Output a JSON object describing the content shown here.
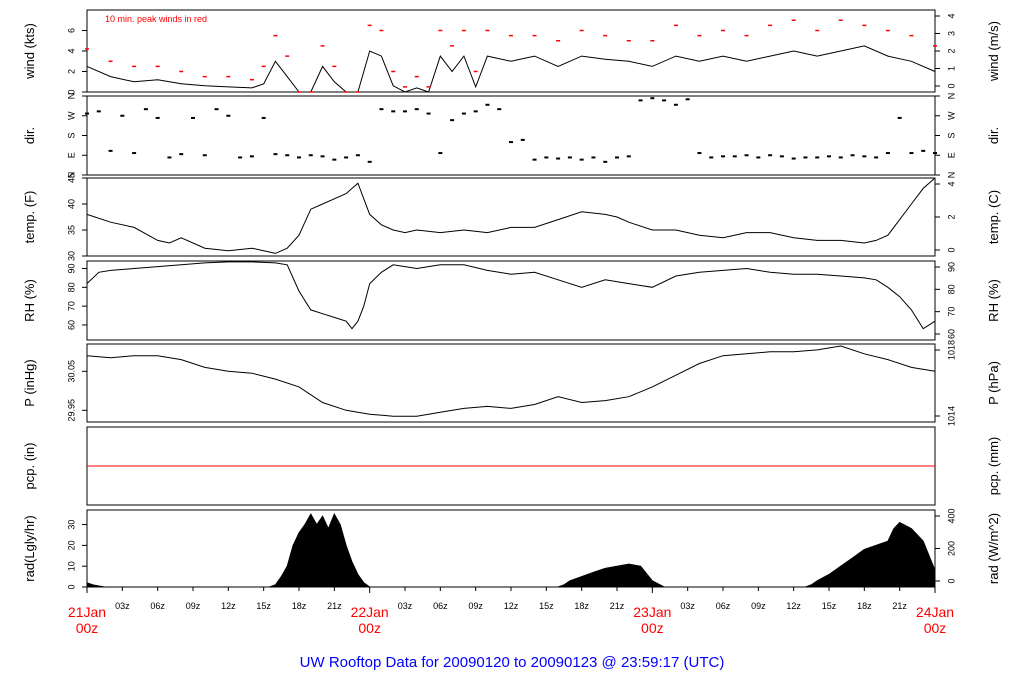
{
  "title": "UW Rooftop Data for 20090120  to  20090123 @ 23:59:17  (UTC)",
  "colors": {
    "axes": "#000000",
    "data": "#000000",
    "peak": "#ff0000",
    "date_labels": "#ff0000",
    "title": "#0000ff",
    "background": "#ffffff"
  },
  "time_axis": {
    "unit": "hours since 21Jan 00z",
    "range": [
      0,
      72
    ],
    "hour_ticks": [
      {
        "t": 3,
        "label": "03z"
      },
      {
        "t": 6,
        "label": "06z"
      },
      {
        "t": 9,
        "label": "09z"
      },
      {
        "t": 12,
        "label": "12z"
      },
      {
        "t": 15,
        "label": "15z"
      },
      {
        "t": 18,
        "label": "18z"
      },
      {
        "t": 21,
        "label": "21z"
      },
      {
        "t": 27,
        "label": "03z"
      },
      {
        "t": 30,
        "label": "06z"
      },
      {
        "t": 33,
        "label": "09z"
      },
      {
        "t": 36,
        "label": "12z"
      },
      {
        "t": 39,
        "label": "15z"
      },
      {
        "t": 42,
        "label": "18z"
      },
      {
        "t": 45,
        "label": "21z"
      },
      {
        "t": 51,
        "label": "03z"
      },
      {
        "t": 54,
        "label": "06z"
      },
      {
        "t": 57,
        "label": "09z"
      },
      {
        "t": 60,
        "label": "12z"
      },
      {
        "t": 63,
        "label": "15z"
      },
      {
        "t": 66,
        "label": "18z"
      },
      {
        "t": 69,
        "label": "21z"
      }
    ],
    "date_ticks": [
      {
        "t": 0,
        "date": "21Jan",
        "hour": "00z"
      },
      {
        "t": 24,
        "date": "22Jan",
        "hour": "00z"
      },
      {
        "t": 48,
        "date": "23Jan",
        "hour": "00z"
      },
      {
        "t": 72,
        "date": "24Jan",
        "hour": "00z"
      }
    ]
  },
  "chart_data": [
    {
      "id": "wind",
      "type": "line",
      "left_label": "wind (kts)",
      "right_label": "wind (m/s)",
      "annotation": "10 min. peak winds in red",
      "ylim": [
        0,
        8
      ],
      "left_ticks": [
        0,
        2,
        4,
        6
      ],
      "right_ticks": [
        0,
        1,
        2,
        3,
        4
      ],
      "series": [
        {
          "name": "",
          "x": [
            0,
            2,
            4,
            6,
            8,
            10,
            12,
            14,
            15,
            16,
            17,
            18,
            19,
            20,
            21,
            22,
            23,
            24,
            25,
            26,
            27,
            28,
            29,
            30,
            31,
            32,
            33,
            34,
            36,
            38,
            40,
            42,
            44,
            46,
            48,
            50,
            52,
            54,
            56,
            58,
            60,
            62,
            64,
            66,
            68,
            70,
            72
          ],
          "y": [
            2.5,
            1.5,
            1.0,
            1.2,
            0.8,
            0.6,
            0.5,
            0.4,
            0.8,
            3.0,
            1.5,
            0.0,
            0.0,
            2.5,
            1.0,
            0.0,
            0.0,
            4.0,
            3.5,
            0.6,
            0.0,
            0.4,
            0.0,
            3.5,
            2.0,
            3.5,
            0.5,
            3.5,
            3.0,
            3.5,
            2.5,
            3.5,
            3.2,
            3.0,
            2.5,
            3.5,
            3.0,
            3.5,
            3.0,
            3.5,
            4.0,
            3.5,
            4.0,
            4.5,
            3.5,
            3.0,
            2.0
          ]
        },
        {
          "name": "10 min. peak winds",
          "x": [
            0,
            2,
            4,
            6,
            8,
            10,
            12,
            14,
            15,
            16,
            17,
            18,
            19,
            20,
            21,
            22,
            23,
            24,
            25,
            26,
            27,
            28,
            29,
            30,
            31,
            32,
            33,
            34,
            36,
            38,
            40,
            42,
            44,
            46,
            48,
            50,
            52,
            54,
            56,
            58,
            60,
            62,
            64,
            66,
            68,
            70,
            72
          ],
          "y": [
            4.2,
            3.0,
            2.5,
            2.5,
            2.0,
            1.5,
            1.5,
            1.2,
            2.5,
            5.5,
            3.5,
            0.0,
            0.0,
            4.5,
            2.5,
            0.0,
            0.0,
            6.5,
            6.0,
            2.0,
            0.5,
            1.5,
            0.5,
            6.0,
            4.5,
            6.0,
            2.0,
            6.0,
            5.5,
            5.5,
            5.0,
            6.0,
            5.5,
            5.0,
            5.0,
            6.5,
            5.5,
            6.0,
            5.5,
            6.5,
            7.0,
            6.0,
            7.0,
            6.5,
            6.0,
            5.5,
            4.5
          ]
        }
      ]
    },
    {
      "id": "dir",
      "type": "scatter",
      "left_label": "dir.",
      "right_label": "dir.",
      "ylim": [
        0,
        360
      ],
      "left_ticks": [
        "N",
        "E",
        "S",
        "W",
        "N"
      ],
      "right_ticks": [
        "N",
        "E",
        "S",
        "W",
        "N"
      ],
      "series": [
        {
          "name": "",
          "x": [
            0,
            1,
            2,
            3,
            4,
            5,
            6,
            7,
            8,
            9,
            10,
            11,
            12,
            13,
            14,
            15,
            16,
            17,
            18,
            19,
            20,
            21,
            22,
            23,
            24,
            25,
            26,
            27,
            28,
            29,
            30,
            31,
            32,
            33,
            34,
            35,
            36,
            37,
            38,
            39,
            40,
            41,
            42,
            43,
            44,
            45,
            46,
            47,
            48,
            49,
            50,
            51,
            52,
            53,
            54,
            55,
            56,
            57,
            58,
            59,
            60,
            61,
            62,
            63,
            64,
            65,
            66,
            67,
            68,
            69,
            70,
            71,
            72
          ],
          "y": [
            280,
            290,
            110,
            270,
            100,
            300,
            260,
            80,
            95,
            260,
            90,
            300,
            270,
            80,
            85,
            260,
            95,
            90,
            80,
            90,
            85,
            70,
            80,
            90,
            60,
            300,
            290,
            290,
            300,
            280,
            100,
            250,
            280,
            290,
            320,
            300,
            150,
            160,
            70,
            80,
            75,
            80,
            70,
            80,
            60,
            80,
            85,
            340,
            350,
            340,
            320,
            345,
            100,
            80,
            85,
            85,
            90,
            80,
            90,
            85,
            75,
            80,
            80,
            85,
            80,
            90,
            85,
            80,
            100,
            260,
            100,
            110,
            100
          ]
        }
      ]
    },
    {
      "id": "temp",
      "type": "line",
      "left_label": "temp. (F)",
      "right_label": "temp. (C)",
      "ylim": [
        30,
        45
      ],
      "left_ticks": [
        30,
        35,
        40,
        45
      ],
      "right_ticks": [
        0,
        2,
        4
      ],
      "series": [
        {
          "name": "",
          "x": [
            0,
            2,
            4,
            6,
            7,
            8,
            10,
            12,
            14,
            15,
            16,
            17,
            18,
            19,
            20,
            21,
            22,
            23,
            24,
            25,
            26,
            27,
            28,
            30,
            32,
            34,
            36,
            38,
            40,
            42,
            44,
            45,
            46,
            48,
            50,
            52,
            54,
            56,
            58,
            60,
            62,
            64,
            66,
            67,
            68,
            69,
            70,
            71,
            72
          ],
          "y": [
            38,
            36.5,
            35.5,
            33,
            32.5,
            33.5,
            31.5,
            31,
            31.5,
            31,
            30.5,
            31.5,
            34,
            39,
            40,
            41,
            42,
            44,
            38,
            36,
            35,
            34.5,
            35,
            34.5,
            35,
            34.5,
            35.5,
            35.5,
            37,
            38.5,
            38,
            37.5,
            36.5,
            35,
            35,
            34,
            33.5,
            34.5,
            34.5,
            33.5,
            33,
            33,
            32.5,
            33,
            34,
            37,
            40,
            43,
            45
          ]
        }
      ]
    },
    {
      "id": "rh",
      "type": "line",
      "left_label": "RH (%)",
      "right_label": "RH (%)",
      "ylim": [
        52,
        94
      ],
      "left_ticks": [
        60,
        70,
        80,
        90
      ],
      "right_ticks": [
        60,
        70,
        80,
        90
      ],
      "series": [
        {
          "name": "",
          "x": [
            0,
            1,
            2,
            4,
            6,
            8,
            10,
            12,
            14,
            16,
            17,
            18,
            19,
            20,
            21,
            22,
            22.5,
            23,
            23.5,
            24,
            25,
            26,
            28,
            30,
            32,
            34,
            36,
            38,
            40,
            42,
            44,
            46,
            48,
            50,
            52,
            54,
            56,
            58,
            60,
            62,
            64,
            66,
            67,
            68,
            69,
            70,
            71,
            72
          ],
          "y": [
            82,
            88,
            89,
            90,
            91,
            92,
            93,
            93.5,
            93.5,
            93,
            92,
            78,
            68,
            66,
            64,
            62,
            58,
            62,
            70,
            82,
            88,
            92,
            90,
            92,
            92,
            89,
            87,
            88,
            84,
            80,
            84,
            82,
            80,
            86,
            88,
            89,
            90,
            88,
            87,
            87,
            86,
            85,
            84,
            80,
            75,
            68,
            58,
            62
          ]
        }
      ]
    },
    {
      "id": "pressure",
      "type": "line",
      "left_label": "P (inHg)",
      "right_label": "P (hPa)",
      "ylim": [
        29.92,
        30.12
      ],
      "left_ticks": [
        29.95,
        30.05
      ],
      "right_ticks": [
        1014,
        1018
      ],
      "series": [
        {
          "name": "",
          "x": [
            0,
            2,
            4,
            6,
            8,
            10,
            12,
            14,
            16,
            18,
            20,
            22,
            24,
            26,
            28,
            30,
            32,
            34,
            36,
            38,
            40,
            42,
            44,
            46,
            48,
            50,
            52,
            54,
            56,
            58,
            60,
            62,
            64,
            66,
            68,
            70,
            72
          ],
          "y": [
            30.09,
            30.085,
            30.09,
            30.09,
            30.08,
            30.06,
            30.05,
            30.045,
            30.03,
            30.01,
            29.97,
            29.95,
            29.94,
            29.935,
            29.935,
            29.945,
            29.955,
            29.96,
            29.955,
            29.965,
            29.985,
            29.97,
            29.975,
            29.985,
            30.01,
            30.04,
            30.07,
            30.09,
            30.095,
            30.1,
            30.1,
            30.105,
            30.115,
            30.095,
            30.08,
            30.06,
            30.05
          ]
        }
      ]
    },
    {
      "id": "precip",
      "type": "line",
      "left_label": "pcp. (in)",
      "right_label": "pcp. (mm)",
      "ylim": [
        0,
        1
      ],
      "left_ticks": [],
      "right_ticks": [],
      "series": [
        {
          "name": "",
          "x": [
            0,
            72
          ],
          "y": [
            0.5,
            0.5
          ]
        }
      ]
    },
    {
      "id": "radiation",
      "type": "area",
      "left_label": "rad(Lgly/hr)",
      "right_label": "rad (W/m^2)",
      "ylim": [
        0,
        37
      ],
      "left_ticks": [
        0,
        10,
        20,
        30
      ],
      "right_ticks": [
        0,
        200,
        400
      ],
      "series": [
        {
          "name": "",
          "x": [
            0,
            0.5,
            1,
            1.5,
            15.5,
            16,
            16.5,
            17,
            17.5,
            18,
            18.5,
            19,
            19.5,
            20,
            20.5,
            21,
            21.5,
            22,
            22.5,
            23,
            23.5,
            24,
            40,
            40.5,
            41,
            42,
            43,
            44,
            45,
            46,
            47,
            48,
            49,
            61,
            61.5,
            62,
            63,
            64,
            65,
            66,
            67,
            68,
            68.5,
            69,
            70,
            71,
            72
          ],
          "y": [
            2,
            1,
            0.5,
            0,
            0,
            1,
            5,
            10,
            20,
            26,
            30,
            35,
            30,
            34,
            28,
            35,
            30,
            20,
            12,
            6,
            2,
            0,
            0,
            1,
            3,
            5,
            7,
            9,
            10,
            11,
            10,
            3,
            0,
            0,
            1,
            3,
            6,
            10,
            14,
            18,
            20,
            22,
            28,
            31,
            28,
            22,
            8
          ]
        }
      ]
    }
  ]
}
